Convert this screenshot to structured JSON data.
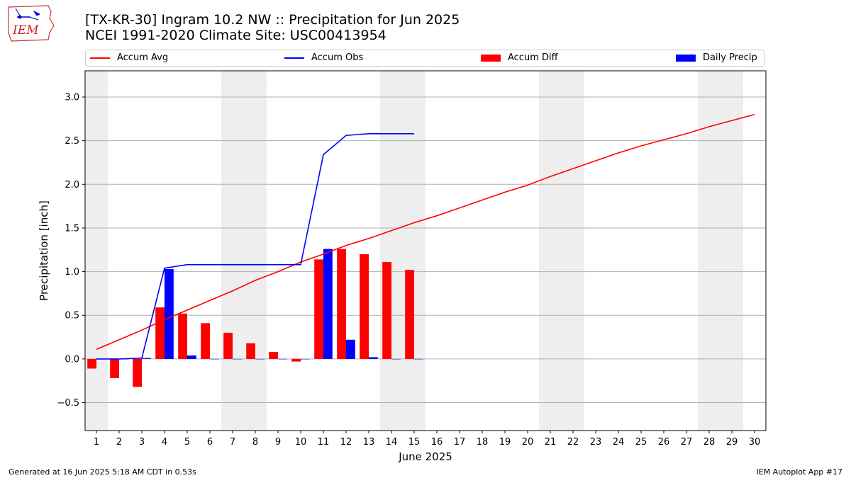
{
  "header": {
    "title_line1": "[TX-KR-30] Ingram 10.2 NW :: Precipitation for Jun 2025",
    "title_line2": "NCEI 1991-2020 Climate Site: USC00413954",
    "logo_text": "IEM"
  },
  "legend": {
    "items": [
      {
        "label": "Accum Avg",
        "color": "#ff0000",
        "kind": "line"
      },
      {
        "label": "Accum Obs",
        "color": "#0000ff",
        "kind": "line"
      },
      {
        "label": "Accum Diff",
        "color": "#ff0000",
        "kind": "bar"
      },
      {
        "label": "Daily Precip",
        "color": "#0000ff",
        "kind": "bar"
      }
    ]
  },
  "footer": {
    "left": "Generated at 16 Jun 2025 5:18 AM CDT in 0.53s",
    "right": "IEM Autoplot App #17"
  },
  "chart_data": {
    "type": "bar",
    "title": "[TX-KR-30] Ingram 10.2 NW :: Precipitation for Jun 2025",
    "subtitle": "NCEI 1991-2020 Climate Site: USC00413954",
    "xlabel": "June 2025",
    "ylabel": "Precipitation [inch]",
    "x": [
      1,
      2,
      3,
      4,
      5,
      6,
      7,
      8,
      9,
      10,
      11,
      12,
      13,
      14,
      15,
      16,
      17,
      18,
      19,
      20,
      21,
      22,
      23,
      24,
      25,
      26,
      27,
      28,
      29,
      30
    ],
    "xlim": [
      0.5,
      30.5
    ],
    "ylim": [
      -0.82,
      3.3
    ],
    "yticks": [
      -0.5,
      0.0,
      0.5,
      1.0,
      1.5,
      2.0,
      2.5,
      3.0
    ],
    "ytick_labels": [
      "−0.5",
      "0.0",
      "0.5",
      "1.0",
      "1.5",
      "2.0",
      "2.5",
      "3.0"
    ],
    "grid": "horizontal",
    "legend_position": "top",
    "weekend_shading_days": [
      1,
      7,
      8,
      14,
      15,
      21,
      22,
      28,
      29
    ],
    "series": [
      {
        "name": "Accum Avg",
        "type": "line",
        "color": "#ff0000",
        "x": [
          1,
          2,
          3,
          4,
          5,
          6,
          7,
          8,
          9,
          10,
          11,
          12,
          13,
          14,
          15,
          16,
          17,
          18,
          19,
          20,
          21,
          22,
          23,
          24,
          25,
          26,
          27,
          28,
          29,
          30
        ],
        "values": [
          0.11,
          0.22,
          0.33,
          0.45,
          0.56,
          0.67,
          0.78,
          0.9,
          1.0,
          1.11,
          1.2,
          1.3,
          1.38,
          1.47,
          1.56,
          1.64,
          1.73,
          1.82,
          1.91,
          1.99,
          2.09,
          2.18,
          2.27,
          2.36,
          2.44,
          2.51,
          2.58,
          2.66,
          2.73,
          2.8
        ]
      },
      {
        "name": "Accum Obs",
        "type": "line",
        "color": "#0000ff",
        "x": [
          1,
          2,
          3,
          4,
          5,
          6,
          7,
          8,
          9,
          10,
          11,
          12,
          13,
          14,
          15
        ],
        "values": [
          0.0,
          0.0,
          0.01,
          1.04,
          1.08,
          1.08,
          1.08,
          1.08,
          1.08,
          1.08,
          2.34,
          2.56,
          2.58,
          2.58,
          2.58
        ]
      },
      {
        "name": "Accum Diff",
        "type": "bar",
        "color": "#ff0000",
        "x": [
          1,
          2,
          3,
          4,
          5,
          6,
          7,
          8,
          9,
          10,
          11,
          12,
          13,
          14,
          15
        ],
        "values": [
          -0.11,
          -0.22,
          -0.32,
          0.59,
          0.52,
          0.41,
          0.3,
          0.18,
          0.08,
          -0.03,
          1.14,
          1.26,
          1.2,
          1.11,
          1.02
        ]
      },
      {
        "name": "Daily Precip",
        "type": "bar",
        "color": "#0000ff",
        "x": [
          1,
          2,
          3,
          4,
          5,
          6,
          7,
          8,
          9,
          10,
          11,
          12,
          13,
          14,
          15
        ],
        "values": [
          0.0,
          0.0,
          0.01,
          1.03,
          0.04,
          0.0,
          0.0,
          0.0,
          0.0,
          0.0,
          1.26,
          0.22,
          0.02,
          0.0,
          0.0
        ]
      }
    ]
  }
}
